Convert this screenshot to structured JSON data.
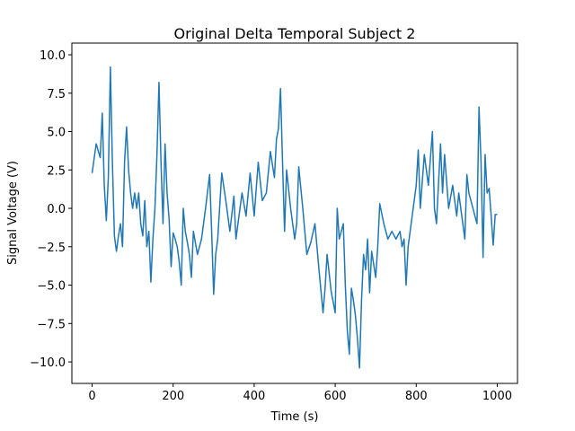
{
  "chart_data": {
    "type": "line",
    "title": "Original Delta Temporal Subject 2",
    "xlabel": "Time (s)",
    "ylabel": "Signal Voltage (V)",
    "color": "#1f77b4",
    "x": [
      0,
      10,
      20,
      25,
      30,
      35,
      40,
      45,
      50,
      55,
      60,
      65,
      70,
      75,
      80,
      85,
      90,
      95,
      100,
      105,
      110,
      115,
      120,
      125,
      130,
      135,
      140,
      145,
      150,
      155,
      160,
      165,
      170,
      175,
      180,
      185,
      190,
      195,
      200,
      205,
      210,
      215,
      220,
      225,
      230,
      235,
      240,
      245,
      250,
      260,
      270,
      280,
      290,
      295,
      300,
      305,
      310,
      320,
      330,
      340,
      350,
      355,
      360,
      370,
      380,
      390,
      400,
      410,
      420,
      430,
      440,
      450,
      455,
      460,
      465,
      470,
      475,
      480,
      490,
      500,
      505,
      510,
      520,
      530,
      540,
      550,
      560,
      570,
      575,
      580,
      590,
      600,
      605,
      610,
      620,
      625,
      630,
      635,
      640,
      645,
      650,
      655,
      660,
      665,
      670,
      675,
      680,
      685,
      690,
      700,
      705,
      710,
      720,
      730,
      740,
      750,
      760,
      765,
      770,
      775,
      780,
      790,
      800,
      805,
      810,
      820,
      830,
      840,
      845,
      850,
      860,
      865,
      870,
      880,
      890,
      900,
      905,
      910,
      920,
      925,
      930,
      940,
      950,
      955,
      960,
      965,
      970,
      975,
      980,
      985,
      990,
      995,
      1000
    ],
    "values": [
      2.3,
      4.2,
      3.3,
      6.2,
      1.5,
      -0.8,
      2,
      9.2,
      3,
      -1.8,
      -2.8,
      -1.8,
      -1,
      -2.5,
      3,
      5.3,
      2.5,
      1,
      0,
      1,
      0,
      1,
      -1,
      -1.8,
      0.5,
      -2.5,
      -1.5,
      -4.8,
      -2,
      0,
      3.5,
      8.2,
      3,
      -1,
      4.2,
      1,
      -0.7,
      -3.8,
      -1.6,
      -2,
      -2.5,
      -3.5,
      -5,
      0,
      -1.5,
      -2.2,
      -3,
      -4.5,
      -1.5,
      -3,
      -2,
      0,
      2.2,
      -1.5,
      -5.6,
      -3,
      -2,
      2.3,
      0.5,
      -1.5,
      0.8,
      -2,
      -1,
      1,
      -0.5,
      2.3,
      -0.5,
      3,
      0.5,
      1,
      3.7,
      2,
      4.5,
      5.2,
      7.8,
      3,
      -1.5,
      2.5,
      0,
      -2,
      -1,
      2.7,
      0,
      -3,
      -2.2,
      -1,
      -4,
      -6.8,
      -5.2,
      -3,
      -5.4,
      -6.8,
      0,
      -2,
      -1,
      -5,
      -8,
      -9.5,
      -5.2,
      -6,
      -7,
      -8.5,
      -10.4,
      -6,
      -3,
      -4,
      -2,
      -5.5,
      -2.8,
      -4.5,
      -2.5,
      0.3,
      -1,
      -2,
      -1.5,
      -2,
      -1.5,
      -2.5,
      -2,
      -5,
      -2.5,
      -0.5,
      1.5,
      3.8,
      0,
      3.5,
      1.5,
      5,
      0,
      -1,
      4.2,
      1,
      3.5,
      0,
      1.5,
      -0.5,
      1,
      0,
      -2,
      2.2,
      1,
      0,
      -1,
      6.6,
      3,
      -3.2,
      3.5,
      1,
      1.3,
      -0.5,
      -2.4,
      -0.4,
      -0.4
    ],
    "xlim": [
      -50,
      1050
    ],
    "ylim": [
      -11.4,
      10.76
    ],
    "xticks": [
      0,
      200,
      400,
      600,
      800,
      1000
    ],
    "yticks": [
      {
        "value": -10,
        "label": "−10.0"
      },
      {
        "value": -7.5,
        "label": "−7.5"
      },
      {
        "value": -5,
        "label": "−5.0"
      },
      {
        "value": -2.5,
        "label": "−2.5"
      },
      {
        "value": 0,
        "label": "0.0"
      },
      {
        "value": 2.5,
        "label": "2.5"
      },
      {
        "value": 5,
        "label": "5.0"
      },
      {
        "value": 7.5,
        "label": "7.5"
      },
      {
        "value": 10,
        "label": "10.0"
      }
    ],
    "grid": false
  }
}
